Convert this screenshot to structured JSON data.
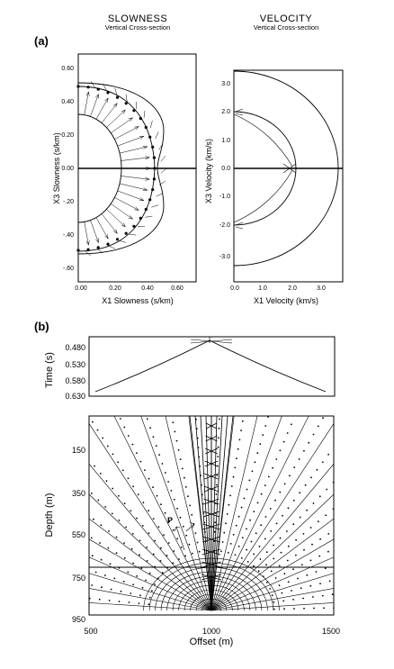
{
  "panel_a": {
    "label": "(a)",
    "slowness": {
      "title": "SLOWNESS",
      "subtitle": "Vertical Cross-section",
      "xlabel": "X1 Slowness (s/km)",
      "ylabel": "X3 Slowness (s/km)",
      "xticks": [
        "0.00",
        "0.20",
        "0.40",
        "0.60"
      ],
      "yticks": [
        "0.60",
        "0.40",
        "0.20",
        "0.00",
        "-.20",
        "-.40",
        "-.60"
      ]
    },
    "velocity": {
      "title": "VELOCITY",
      "subtitle": "Vertical Cross-section",
      "xlabel": "X1 Velocity (km/s)",
      "ylabel": "X3 Velocity (km/s)",
      "xticks": [
        "0.0",
        "1.0",
        "2.0",
        "3.0"
      ],
      "yticks": [
        "3.0",
        "2.0",
        "1.0",
        "0.0",
        "-1.0",
        "-2.0",
        "-3.0"
      ]
    }
  },
  "panel_b": {
    "label": "(b)",
    "time": {
      "ylabel": "Time (s)",
      "yticks": [
        "0.480",
        "0.530",
        "0.580",
        "0.630"
      ]
    },
    "depth": {
      "ylabel": "Depth (m)",
      "xlabel": "Offset (m)",
      "yticks": [
        "150",
        "350",
        "550",
        "750",
        "950"
      ],
      "xticks": [
        "500",
        "1000",
        "1500"
      ],
      "annotation": "P"
    }
  }
}
